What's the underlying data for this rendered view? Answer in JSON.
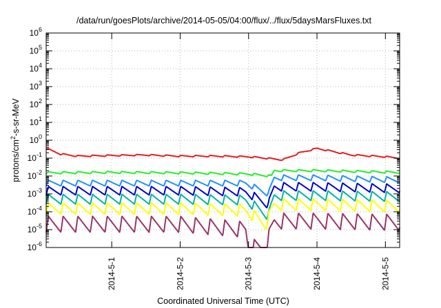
{
  "chart_data": {
    "type": "line",
    "title": "/data/run/goesPlots/archive/2014-05-05/04:00/flux/../flux/5daysMarsFluxes.txt",
    "xlabel": "Coordinated Universal Time (UTC)",
    "ylabel_parts": {
      "base": "protons/cm",
      "sup": "2",
      "rest": "-s-sr-MeV"
    },
    "x_range": [
      "2014-04-30T01:00",
      "2014-05-05T05:00"
    ],
    "x_ticks": [
      "2014-5-1",
      "2014-5-2",
      "2014-5-3",
      "2014-5-4",
      "2014-5-5"
    ],
    "yscale": "log",
    "ylim": [
      1e-06,
      1000000.0
    ],
    "y_ticks": [
      {
        "base": "10",
        "exp": "-6"
      },
      {
        "base": "10",
        "exp": "-5"
      },
      {
        "base": "10",
        "exp": "-4"
      },
      {
        "base": "10",
        "exp": "-3"
      },
      {
        "base": "10",
        "exp": "-2"
      },
      {
        "base": "10",
        "exp": "-1"
      },
      {
        "base": "10",
        "exp": "0"
      },
      {
        "base": "10",
        "exp": "1"
      },
      {
        "base": "10",
        "exp": "2"
      },
      {
        "base": "10",
        "exp": "3"
      },
      {
        "base": "10",
        "exp": "4"
      },
      {
        "base": "10",
        "exp": "5"
      },
      {
        "base": "10",
        "exp": "6"
      }
    ],
    "grid": true,
    "series": [
      {
        "color": "#e41a1c",
        "x": [
          "2014-04-30T01:00",
          "2014-04-30T06:00",
          "2014-04-30T12:00",
          "2014-05-01T00:00",
          "2014-05-01T12:00",
          "2014-05-02T00:00",
          "2014-05-02T12:00",
          "2014-05-03T00:00",
          "2014-05-03T06:00",
          "2014-05-03T12:00",
          "2014-05-03T18:00",
          "2014-05-04T00:00",
          "2014-05-04T12:00",
          "2014-05-05T00:00",
          "2014-05-05T05:00"
        ],
        "y": [
          0.35,
          0.17,
          0.13,
          0.14,
          0.15,
          0.13,
          0.13,
          0.12,
          0.1,
          0.08,
          0.2,
          0.35,
          0.15,
          0.12,
          0.1
        ]
      },
      {
        "color": "#22ee22",
        "x": [
          "2014-04-30T01:00",
          "2014-05-01T00:00",
          "2014-05-02T00:00",
          "2014-05-03T00:00",
          "2014-05-03T08:00",
          "2014-05-03T09:00",
          "2014-05-04T00:00",
          "2014-05-05T05:00"
        ],
        "y": [
          0.015,
          0.016,
          0.015,
          0.013,
          0.01,
          0.02,
          0.02,
          0.016
        ]
      },
      {
        "color": "#1e90ff",
        "x": [
          "2014-04-30T01:00",
          "2014-05-01T00:00",
          "2014-05-02T00:00",
          "2014-05-02T23:00",
          "2014-05-03T07:00",
          "2014-05-03T09:00",
          "2014-05-04T00:00",
          "2014-05-05T05:00"
        ],
        "y": [
          0.004,
          0.004,
          0.004,
          0.004,
          0.001,
          0.008,
          0.008,
          0.006
        ]
      },
      {
        "color": "#0000cc",
        "x": [
          "2014-04-30T01:00",
          "2014-05-01T00:00",
          "2014-05-02T00:00",
          "2014-05-02T23:00",
          "2014-05-03T07:00",
          "2014-05-03T09:00",
          "2014-05-04T00:00",
          "2014-05-05T05:00"
        ],
        "y": [
          0.0015,
          0.0015,
          0.0015,
          0.0013,
          0.00025,
          0.0025,
          0.0025,
          0.002
        ]
      },
      {
        "color": "#00b3a4",
        "x": [
          "2014-04-30T01:00",
          "2014-05-01T00:00",
          "2014-05-02T00:00",
          "2014-05-02T23:00",
          "2014-05-03T07:00",
          "2014-05-03T09:00",
          "2014-05-04T00:00",
          "2014-05-05T05:00"
        ],
        "y": [
          0.0005,
          0.0005,
          0.0005,
          0.00045,
          6e-05,
          0.0008,
          0.0008,
          0.0007
        ]
      },
      {
        "color": "#ffff00",
        "x": [
          "2014-04-30T01:00",
          "2014-05-01T00:00",
          "2014-05-02T00:00",
          "2014-05-02T23:00",
          "2014-05-03T06:00",
          "2014-05-03T09:00",
          "2014-05-04T00:00",
          "2014-05-05T05:00"
        ],
        "y": [
          0.00015,
          0.00015,
          0.00015,
          0.00012,
          2e-05,
          0.00025,
          0.00025,
          0.0002
        ]
      },
      {
        "color": "#993366",
        "x": [
          "2014-04-30T01:00",
          "2014-05-01T00:00",
          "2014-05-02T00:00",
          "2014-05-02T23:00",
          "2014-05-03T00:00",
          "2014-05-03T06:00",
          "2014-05-03T09:00",
          "2014-05-04T00:00",
          "2014-05-05T05:00"
        ],
        "y": [
          2e-05,
          2e-05,
          2e-05,
          1e-05,
          1e-06,
          1e-06,
          3e-05,
          3e-05,
          2.5e-05
        ]
      }
    ]
  }
}
